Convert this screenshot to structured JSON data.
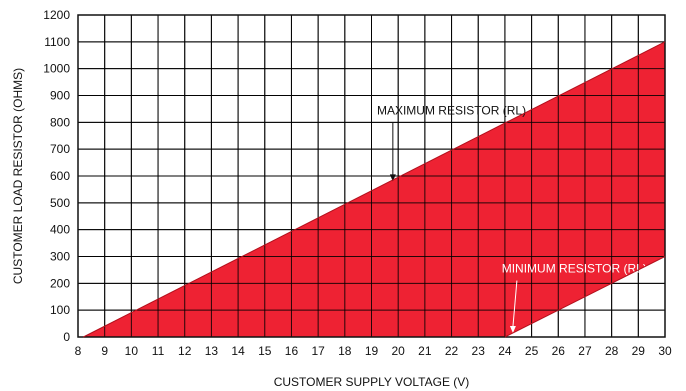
{
  "chart_data": {
    "type": "area",
    "xlabel": "CUSTOMER SUPPLY VOLTAGE (V)",
    "ylabel": "CUSTOMER LOAD RESISTOR (OHMS)",
    "xlim": [
      8,
      30
    ],
    "ylim": [
      0,
      1200
    ],
    "x_ticks": [
      8,
      9,
      10,
      11,
      12,
      13,
      14,
      15,
      16,
      17,
      18,
      19,
      20,
      21,
      22,
      23,
      24,
      25,
      26,
      27,
      28,
      29,
      30
    ],
    "y_ticks": [
      0,
      100,
      200,
      300,
      400,
      500,
      600,
      700,
      800,
      900,
      1000,
      1100,
      1200
    ],
    "grid": true,
    "fill_color": "#ee2233",
    "series": [
      {
        "name": "MAXIMUM RESISTOR (RL)",
        "points": [
          [
            8.2,
            0
          ],
          [
            30,
            1100
          ]
        ]
      },
      {
        "name": "MINIMUM RESISTOR (RL)",
        "points": [
          [
            24,
            0
          ],
          [
            30,
            300
          ]
        ]
      }
    ],
    "annotations": [
      {
        "text": "MAXIMUM RESISTOR (RL)",
        "text_x": 22,
        "text_y": 830,
        "arrow_to": [
          19.8,
          580
        ],
        "color": "#111111"
      },
      {
        "text": "MINIMUM RESISTOR (RL)",
        "text_x": 26.6,
        "text_y": 240,
        "arrow_to": [
          24.3,
          15
        ],
        "color": "#ffffff"
      }
    ]
  }
}
